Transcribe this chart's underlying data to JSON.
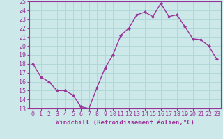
{
  "hours": [
    0,
    1,
    2,
    3,
    4,
    5,
    6,
    7,
    8,
    9,
    10,
    11,
    12,
    13,
    14,
    15,
    16,
    17,
    18,
    19,
    20,
    21,
    22,
    23
  ],
  "values": [
    18,
    16.5,
    16,
    15,
    15,
    14.5,
    13.2,
    13,
    15.3,
    17.5,
    19,
    21.2,
    22,
    23.5,
    23.8,
    23.3,
    24.8,
    23.3,
    23.5,
    22.2,
    20.8,
    20.7,
    20,
    18.5
  ],
  "line_color": "#993399",
  "marker": "D",
  "marker_size": 2.0,
  "bg_color": "#cce8e8",
  "grid_color": "#b0d8d8",
  "xlabel": "Windchill (Refroidissement éolien,°C)",
  "ylim": [
    13,
    25
  ],
  "xlim": [
    -0.5,
    23.5
  ],
  "yticks": [
    13,
    14,
    15,
    16,
    17,
    18,
    19,
    20,
    21,
    22,
    23,
    24,
    25
  ],
  "xticks": [
    0,
    1,
    2,
    3,
    4,
    5,
    6,
    7,
    8,
    9,
    10,
    11,
    12,
    13,
    14,
    15,
    16,
    17,
    18,
    19,
    20,
    21,
    22,
    23
  ],
  "xlabel_fontsize": 6.5,
  "tick_fontsize": 6,
  "line_width": 1.0
}
